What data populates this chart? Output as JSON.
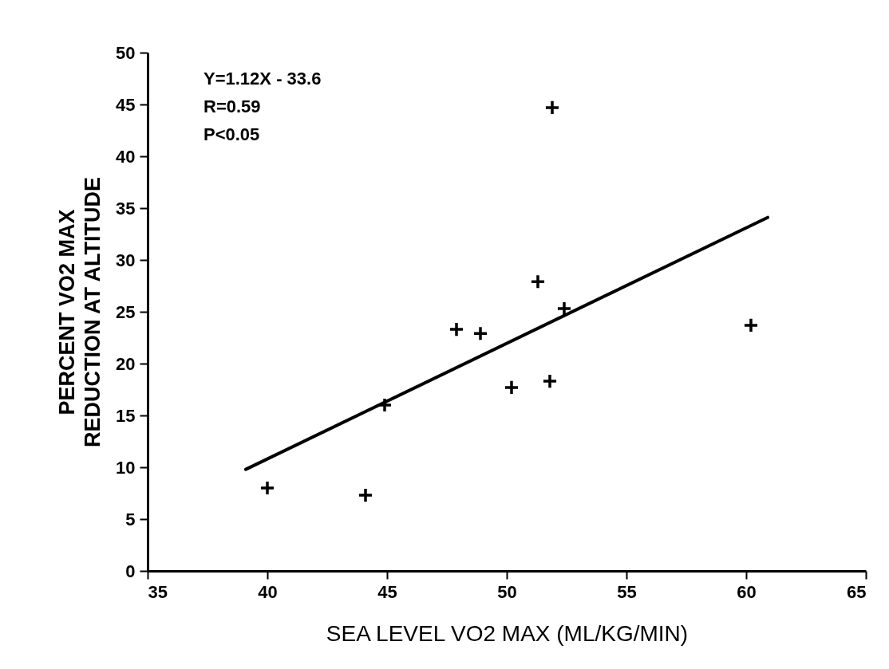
{
  "chart_data": {
    "type": "scatter",
    "xlabel": "SEA LEVEL VO2 MAX (ML/KG/MIN)",
    "ylabel": "PERCENT VO2 MAX\nREDUCTION AT ALTITUDE",
    "xlim": [
      35,
      65
    ],
    "xticks": [
      35,
      40,
      45,
      50,
      55,
      60,
      65
    ],
    "ylim": [
      0,
      50
    ],
    "yticks": [
      0,
      5,
      10,
      15,
      20,
      25,
      30,
      35,
      40,
      45,
      50
    ],
    "grid": false,
    "annotations": [
      "Y=1.12X - 33.6",
      "R=0.59",
      "P<0.05"
    ],
    "series": [
      {
        "type": "scatter",
        "color": "#000000",
        "marker": "cross",
        "x": [
          40.0,
          44.1,
          44.9,
          47.9,
          48.9,
          50.2,
          51.8,
          51.3,
          52.4,
          51.9,
          60.2
        ],
        "values": [
          8.0,
          7.3,
          16.0,
          23.3,
          22.9,
          17.7,
          18.3,
          27.9,
          25.3,
          44.7,
          23.7
        ]
      },
      {
        "type": "line",
        "color": "#000000",
        "line_style": "solid",
        "x": [
          39.1,
          60.9
        ],
        "values": [
          9.8,
          34.1
        ]
      }
    ]
  }
}
